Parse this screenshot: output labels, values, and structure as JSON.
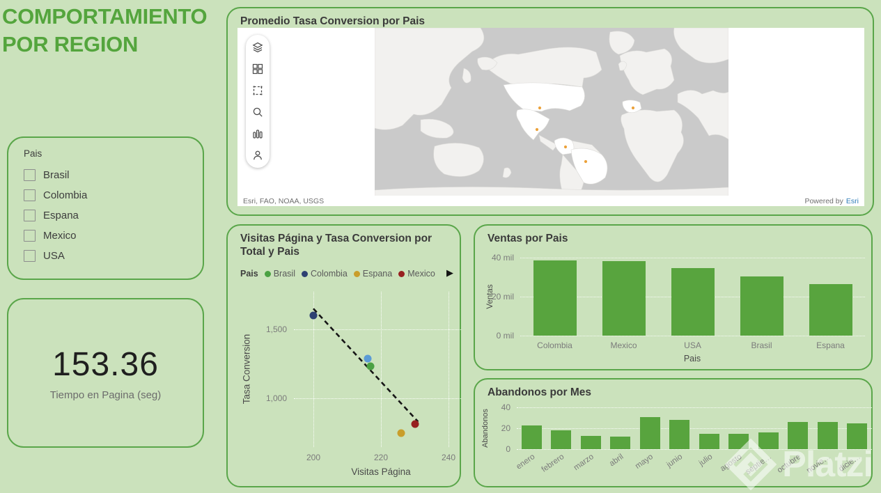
{
  "colors": {
    "background": "#cbe2bc",
    "panel_border": "#5aa64a",
    "title_green": "#54a53d",
    "bar_green": "#58a43e",
    "map_ocean": "#cacaca",
    "map_land": "#f2f1ef",
    "map_highlight": "#ffffff",
    "map_point_orange": "#eca23b",
    "esri_link_blue": "#2e7cb8"
  },
  "header": {
    "title": "COMPORTAMIENTO POR REGION"
  },
  "filter": {
    "label": "Pais",
    "options": [
      "Brasil",
      "Colombia",
      "Espana",
      "Mexico",
      "USA"
    ]
  },
  "kpi": {
    "value": "153.36",
    "label": "Tiempo en Pagina (seg)"
  },
  "map_panel": {
    "title": "Promedio Tasa Conversion por Pais",
    "attribution": "Esri, FAO, NOAA, USGS",
    "powered_by_prefix": "Powered by",
    "powered_by_link": "Esri",
    "toolbar_icons": [
      "layers-icon",
      "basemap-gallery-icon",
      "selection-icon",
      "search-icon",
      "chart-icon",
      "person-icon"
    ],
    "points": [
      {
        "country": "USA",
        "x": 237,
        "y": 115
      },
      {
        "country": "Mexico",
        "x": 233,
        "y": 146
      },
      {
        "country": "Colombia",
        "x": 274,
        "y": 171
      },
      {
        "country": "Brasil",
        "x": 303,
        "y": 192
      },
      {
        "country": "Espana",
        "x": 371,
        "y": 115
      }
    ]
  },
  "scatter_ui": {
    "legend_arrow": "▶"
  },
  "chart_data": [
    {
      "type": "scatter",
      "title": "Visitas Página y Tasa Conversion por Total y Pais",
      "xlabel": "Visitas Página",
      "ylabel": "Tasa Conversion",
      "legend_title": "Pais",
      "legend_position": "top",
      "xlim": [
        195,
        245
      ],
      "ylim": [
        700,
        1750
      ],
      "xticks": [
        200,
        220,
        240
      ],
      "yticks": [
        1000,
        1500
      ],
      "grid": true,
      "series": [
        {
          "name": "Brasil",
          "color": "#4ba143",
          "x": 217,
          "y": 1230,
          "in_legend": true
        },
        {
          "name": "Colombia",
          "color": "#2e4172",
          "x": 200,
          "y": 1600,
          "in_legend": true
        },
        {
          "name": "Espana",
          "color": "#c99e2b",
          "x": 226,
          "y": 750,
          "in_legend": true
        },
        {
          "name": "Mexico",
          "color": "#972020",
          "x": 230,
          "y": 815,
          "in_legend": true
        },
        {
          "name": "USA",
          "color": "#5b9bd5",
          "x": 216,
          "y": 1290,
          "in_legend": false
        }
      ],
      "trendline": {
        "style": "dashed",
        "color": "#161616",
        "x1": 200,
        "y1": 1650,
        "x2": 231,
        "y2": 830
      }
    },
    {
      "type": "bar",
      "title": "Ventas por Pais",
      "xlabel": "Pais",
      "ylabel": "Ventas",
      "categories": [
        "Colombia",
        "Mexico",
        "USA",
        "Brasil",
        "Espana"
      ],
      "values": [
        38700,
        38200,
        34600,
        30500,
        26300
      ],
      "ylim": [
        0,
        40000
      ],
      "yticks": [
        0,
        20000,
        40000
      ],
      "ytick_labels": [
        "0 mil",
        "20 mil",
        "40 mil"
      ],
      "grid": true,
      "bar_color": "#58a43e"
    },
    {
      "type": "bar",
      "title": "Abandonos por Mes",
      "xlabel": "",
      "ylabel": "Abandonos",
      "categories": [
        "enero",
        "febrero",
        "marzo",
        "abril",
        "mayo",
        "junio",
        "julio",
        "agosto",
        "septie…",
        "octubre",
        "novie…",
        "dicie…"
      ],
      "values": [
        23,
        18,
        13,
        12,
        31,
        28,
        15,
        15,
        16,
        26,
        26,
        25
      ],
      "ylim": [
        0,
        40
      ],
      "yticks": [
        0,
        20,
        40
      ],
      "ytick_labels": [
        "0",
        "20",
        "40"
      ],
      "grid": true,
      "bar_color": "#58a43e"
    }
  ],
  "watermark": {
    "text": "Platzi"
  }
}
